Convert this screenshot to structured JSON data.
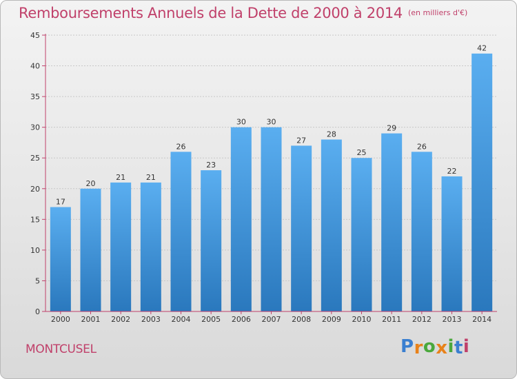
{
  "header": {
    "title": "Remboursements Annuels de la Dette de 2000 à 2014",
    "unit": "(en milliers d'€)"
  },
  "footer": {
    "commune": "MONTCUSEL",
    "brand": "Proxiti",
    "brand_letters": [
      "P",
      "r",
      "o",
      "x",
      "i",
      "t",
      "i"
    ],
    "brand_colors": [
      "#3a7fd0",
      "#e8821a",
      "#4aa83c",
      "#e8821a",
      "#4aa83c",
      "#3a7fd0",
      "#c0406a"
    ]
  },
  "colors": {
    "accent_text": "#c0406a",
    "bar_top": "#5aaef0",
    "bar_bottom": "#2a78bd",
    "axis": "#c0406a",
    "grid": "#c8c8c8"
  },
  "chart_data": {
    "type": "bar",
    "title": "Remboursements Annuels de la Dette de 2000 à 2014",
    "subtitle": "(en milliers d'€)",
    "xlabel": "",
    "ylabel": "",
    "categories": [
      "2000",
      "2001",
      "2002",
      "2003",
      "2004",
      "2005",
      "2006",
      "2007",
      "2008",
      "2009",
      "2010",
      "2011",
      "2012",
      "2013",
      "2014"
    ],
    "values": [
      17,
      20,
      21,
      21,
      26,
      23,
      30,
      30,
      27,
      28,
      25,
      29,
      26,
      22,
      42
    ],
    "ylim": [
      0,
      45
    ],
    "yticks": [
      0,
      5,
      10,
      15,
      20,
      25,
      30,
      35,
      40,
      45
    ],
    "grid": true,
    "data_labels": true
  }
}
